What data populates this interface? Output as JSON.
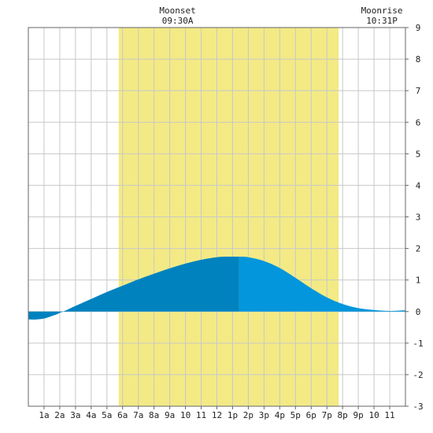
{
  "chart_data": {
    "type": "area",
    "title": "",
    "xlabel": "",
    "ylabel": "",
    "ylim": [
      -3,
      9
    ],
    "xlim": [
      0,
      24
    ],
    "y_ticks": [
      -3,
      -2,
      -1,
      0,
      1,
      2,
      3,
      4,
      5,
      6,
      7,
      8,
      9
    ],
    "x_tick_labels": [
      {
        "hour": 1,
        "label": "1a"
      },
      {
        "hour": 2,
        "label": "2a"
      },
      {
        "hour": 3,
        "label": "3a"
      },
      {
        "hour": 4,
        "label": "4a"
      },
      {
        "hour": 5,
        "label": "5a"
      },
      {
        "hour": 6,
        "label": "6a"
      },
      {
        "hour": 7,
        "label": "7a"
      },
      {
        "hour": 8,
        "label": "8a"
      },
      {
        "hour": 9,
        "label": "9a"
      },
      {
        "hour": 10,
        "label": "10"
      },
      {
        "hour": 11,
        "label": "11"
      },
      {
        "hour": 12,
        "label": "12"
      },
      {
        "hour": 13,
        "label": "1p"
      },
      {
        "hour": 14,
        "label": "2p"
      },
      {
        "hour": 15,
        "label": "3p"
      },
      {
        "hour": 16,
        "label": "4p"
      },
      {
        "hour": 17,
        "label": "5p"
      },
      {
        "hour": 18,
        "label": "6p"
      },
      {
        "hour": 19,
        "label": "7p"
      },
      {
        "hour": 20,
        "label": "8p"
      },
      {
        "hour": 21,
        "label": "9p"
      },
      {
        "hour": 22,
        "label": "10"
      },
      {
        "hour": 23,
        "label": "11"
      }
    ],
    "grid": true,
    "daylight": {
      "start_hour": 5.75,
      "end_hour": 19.75,
      "color": "#f3ea85"
    },
    "annotations": [
      {
        "name": "moonset",
        "title": "Moonset",
        "time": "09:30A",
        "hour": 9.5
      },
      {
        "name": "moonrise",
        "title": "Moonrise",
        "time": "10:31P",
        "hour": 22.5
      }
    ],
    "series": [
      {
        "x": [
          0,
          0.5,
          1,
          1.5,
          2,
          3,
          4,
          5,
          6,
          7,
          8,
          9,
          10,
          11,
          12,
          12.5,
          13,
          13.5,
          14,
          15,
          16,
          17,
          18,
          19,
          20,
          21,
          22,
          23,
          24
        ],
        "y": [
          -0.25,
          -0.25,
          -0.22,
          -0.14,
          -0.04,
          0.18,
          0.4,
          0.62,
          0.82,
          1.02,
          1.2,
          1.37,
          1.52,
          1.64,
          1.72,
          1.74,
          1.74,
          1.74,
          1.72,
          1.6,
          1.38,
          1.07,
          0.74,
          0.45,
          0.24,
          0.11,
          0.05,
          0.02,
          0.04
        ]
      }
    ],
    "shading_split_hour": 13.4,
    "colors": {
      "fill_before": "#0082bf",
      "fill_after": "#0396dc",
      "grid": "#c8c8c8",
      "axis": "#666666"
    }
  }
}
